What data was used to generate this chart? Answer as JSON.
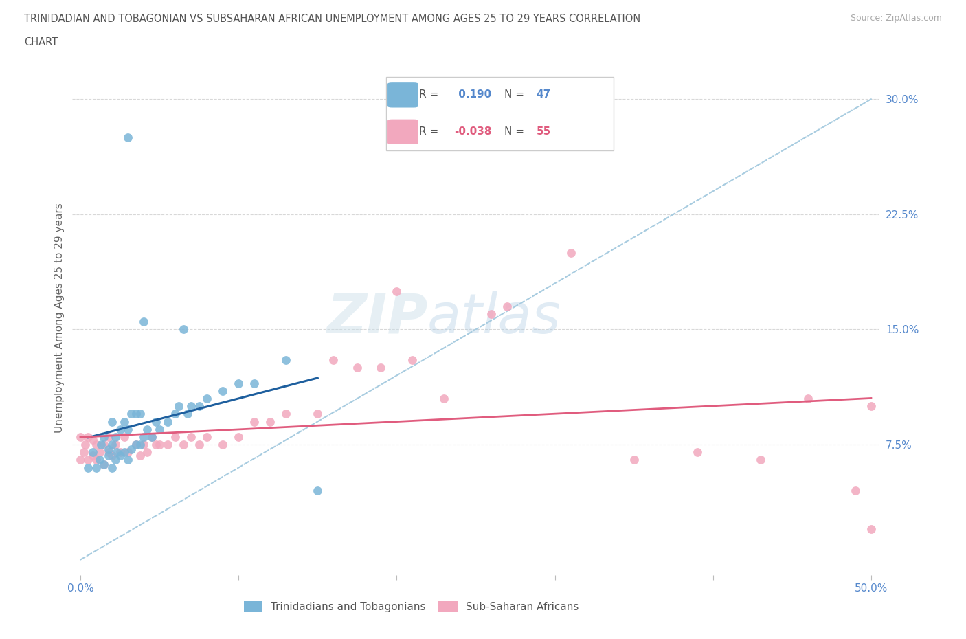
{
  "title_line1": "TRINIDADIAN AND TOBAGONIAN VS SUBSAHARAN AFRICAN UNEMPLOYMENT AMONG AGES 25 TO 29 YEARS CORRELATION",
  "title_line2": "CHART",
  "source": "Source: ZipAtlas.com",
  "ylabel": "Unemployment Among Ages 25 to 29 years",
  "xlim": [
    -0.005,
    0.505
  ],
  "ylim": [
    -0.01,
    0.325
  ],
  "xticks": [
    0.0,
    0.1,
    0.2,
    0.3,
    0.4,
    0.5
  ],
  "xticklabels": [
    "0.0%",
    "",
    "",
    "",
    "",
    "50.0%"
  ],
  "yticks_right": [
    0.075,
    0.15,
    0.225,
    0.3
  ],
  "ytick_labels_right": [
    "7.5%",
    "15.0%",
    "22.5%",
    "30.0%"
  ],
  "blue_R": 0.19,
  "blue_N": 47,
  "pink_R": -0.038,
  "pink_N": 55,
  "blue_color": "#7ab5d8",
  "pink_color": "#f2a8be",
  "blue_line_color": "#1e5f9e",
  "pink_line_color": "#e05c7e",
  "blue_dashed_color": "#a8cce0",
  "legend_label_blue": "Trinidadians and Tobagonians",
  "legend_label_pink": "Sub-Saharan Africans",
  "blue_x": [
    0.005,
    0.008,
    0.01,
    0.012,
    0.013,
    0.015,
    0.015,
    0.018,
    0.018,
    0.02,
    0.02,
    0.02,
    0.022,
    0.022,
    0.023,
    0.025,
    0.025,
    0.028,
    0.028,
    0.03,
    0.03,
    0.032,
    0.032,
    0.035,
    0.035,
    0.038,
    0.038,
    0.04,
    0.042,
    0.045,
    0.048,
    0.05,
    0.055,
    0.06,
    0.062,
    0.068,
    0.07,
    0.075,
    0.08,
    0.09,
    0.1,
    0.11,
    0.13,
    0.03,
    0.04,
    0.065,
    0.15
  ],
  "blue_y": [
    0.06,
    0.07,
    0.06,
    0.065,
    0.075,
    0.062,
    0.08,
    0.068,
    0.072,
    0.06,
    0.075,
    0.09,
    0.065,
    0.08,
    0.07,
    0.068,
    0.085,
    0.07,
    0.09,
    0.065,
    0.085,
    0.072,
    0.095,
    0.075,
    0.095,
    0.075,
    0.095,
    0.08,
    0.085,
    0.08,
    0.09,
    0.085,
    0.09,
    0.095,
    0.1,
    0.095,
    0.1,
    0.1,
    0.105,
    0.11,
    0.115,
    0.115,
    0.13,
    0.275,
    0.155,
    0.15,
    0.045
  ],
  "pink_x": [
    0.0,
    0.0,
    0.002,
    0.003,
    0.005,
    0.005,
    0.008,
    0.008,
    0.01,
    0.01,
    0.012,
    0.015,
    0.015,
    0.018,
    0.018,
    0.02,
    0.022,
    0.025,
    0.028,
    0.03,
    0.035,
    0.038,
    0.04,
    0.042,
    0.045,
    0.048,
    0.05,
    0.055,
    0.06,
    0.065,
    0.07,
    0.075,
    0.08,
    0.09,
    0.1,
    0.11,
    0.12,
    0.13,
    0.15,
    0.16,
    0.175,
    0.19,
    0.21,
    0.23,
    0.27,
    0.31,
    0.35,
    0.39,
    0.43,
    0.46,
    0.49,
    0.5,
    0.5,
    0.26,
    0.2
  ],
  "pink_y": [
    0.065,
    0.08,
    0.07,
    0.075,
    0.065,
    0.08,
    0.068,
    0.078,
    0.065,
    0.075,
    0.07,
    0.062,
    0.075,
    0.07,
    0.08,
    0.068,
    0.075,
    0.07,
    0.08,
    0.07,
    0.075,
    0.068,
    0.075,
    0.07,
    0.08,
    0.075,
    0.075,
    0.075,
    0.08,
    0.075,
    0.08,
    0.075,
    0.08,
    0.075,
    0.08,
    0.09,
    0.09,
    0.095,
    0.095,
    0.13,
    0.125,
    0.125,
    0.13,
    0.105,
    0.165,
    0.2,
    0.065,
    0.07,
    0.065,
    0.105,
    0.045,
    0.1,
    0.02,
    0.16,
    0.175
  ]
}
